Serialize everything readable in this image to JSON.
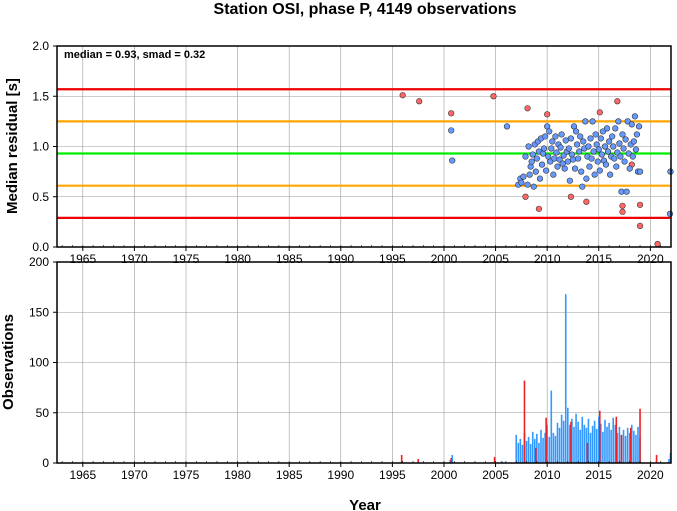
{
  "title": "Station OSI, phase P, 4149 observations",
  "x_axis_label": "Year",
  "chart_data": [
    {
      "type": "scatter",
      "ylabel": "Median residual [s]",
      "annotation": "median = 0.93, smad = 0.32",
      "xlim": [
        1962.5,
        2022
      ],
      "ylim": [
        0,
        2
      ],
      "x_ticks": [
        "1965",
        "1970",
        "1975",
        "1980",
        "1985",
        "1990",
        "1995",
        "2000",
        "2005",
        "2010",
        "2015",
        "2020"
      ],
      "y_ticks": [
        "0.0",
        "0.5",
        "1.0",
        "1.5",
        "2.0"
      ],
      "grid": true,
      "reference_lines": [
        {
          "value": 0.93,
          "color": "#00ee00"
        },
        {
          "value": 1.25,
          "color": "#ffa500"
        },
        {
          "value": 0.61,
          "color": "#ffa500"
        },
        {
          "value": 1.57,
          "color": "#ee0000"
        },
        {
          "value": 0.29,
          "color": "#ee0000"
        }
      ],
      "series": [
        {
          "color": "#ff6666",
          "points": [
            [
              1996,
              1.51
            ],
            [
              1997.6,
              1.45
            ],
            [
              2000.7,
              1.33
            ],
            [
              2004.8,
              1.5
            ],
            [
              2007.9,
              0.5
            ],
            [
              2008.1,
              1.38
            ],
            [
              2009.2,
              0.38
            ],
            [
              2010,
              1.32
            ],
            [
              2012.3,
              0.5
            ],
            [
              2013.8,
              0.45
            ],
            [
              2015.1,
              1.34
            ],
            [
              2016.8,
              1.45
            ],
            [
              2017.3,
              0.41
            ],
            [
              2017.3,
              0.35
            ],
            [
              2018.2,
              0.82
            ],
            [
              2019,
              0.42
            ],
            [
              2019,
              0.21
            ],
            [
              2020.7,
              0.03
            ]
          ]
        },
        {
          "color": "#6699ff",
          "points": [
            [
              2000.7,
              1.16
            ],
            [
              2000.8,
              0.86
            ],
            [
              2006.1,
              1.2
            ],
            [
              2007.2,
              0.62
            ],
            [
              2007.4,
              0.68
            ],
            [
              2007.5,
              0.64
            ],
            [
              2007.7,
              0.7
            ],
            [
              2007.9,
              0.9
            ],
            [
              2008.1,
              0.62
            ],
            [
              2008.2,
              1.0
            ],
            [
              2008.3,
              0.72
            ],
            [
              2008.4,
              0.8
            ],
            [
              2008.5,
              0.85
            ],
            [
              2008.6,
              0.92
            ],
            [
              2008.7,
              0.6
            ],
            [
              2008.8,
              1.02
            ],
            [
              2008.9,
              0.75
            ],
            [
              2009,
              0.88
            ],
            [
              2009.1,
              1.05
            ],
            [
              2009.2,
              0.95
            ],
            [
              2009.3,
              0.68
            ],
            [
              2009.4,
              1.08
            ],
            [
              2009.5,
              0.82
            ],
            [
              2009.6,
              0.93
            ],
            [
              2009.7,
              0.98
            ],
            [
              2009.8,
              1.1
            ],
            [
              2009.9,
              0.76
            ],
            [
              2010,
              1.2
            ],
            [
              2010.1,
              0.9
            ],
            [
              2010.2,
              1.15
            ],
            [
              2010.3,
              0.85
            ],
            [
              2010.4,
              0.98
            ],
            [
              2010.5,
              1.05
            ],
            [
              2010.6,
              0.72
            ],
            [
              2010.7,
              0.88
            ],
            [
              2010.8,
              1.1
            ],
            [
              2010.9,
              0.94
            ],
            [
              2011,
              0.8
            ],
            [
              2011.1,
              1.02
            ],
            [
              2011.2,
              0.87
            ],
            [
              2011.3,
              0.99
            ],
            [
              2011.4,
              1.12
            ],
            [
              2011.5,
              0.83
            ],
            [
              2011.6,
              0.91
            ],
            [
              2011.7,
              0.78
            ],
            [
              2011.8,
              1.06
            ],
            [
              2011.9,
              0.95
            ],
            [
              2012,
              0.85
            ],
            [
              2012.1,
              0.98
            ],
            [
              2012.2,
              0.66
            ],
            [
              2012.3,
              1.08
            ],
            [
              2012.4,
              0.92
            ],
            [
              2012.5,
              0.87
            ],
            [
              2012.6,
              1.2
            ],
            [
              2012.7,
              0.78
            ],
            [
              2012.8,
              1.15
            ],
            [
              2012.9,
              1.02
            ],
            [
              2013,
              0.88
            ],
            [
              2013.1,
              0.95
            ],
            [
              2013.2,
              1.1
            ],
            [
              2013.3,
              0.75
            ],
            [
              2013.4,
              0.6
            ],
            [
              2013.5,
              1.05
            ],
            [
              2013.6,
              0.98
            ],
            [
              2013.7,
              1.25
            ],
            [
              2013.8,
              0.68
            ],
            [
              2013.9,
              0.9
            ],
            [
              2014,
              1.0
            ],
            [
              2014.1,
              0.8
            ],
            [
              2014.2,
              1.08
            ],
            [
              2014.3,
              0.88
            ],
            [
              2014.4,
              1.25
            ],
            [
              2014.5,
              0.95
            ],
            [
              2014.6,
              0.72
            ],
            [
              2014.7,
              1.12
            ],
            [
              2014.8,
              1.02
            ],
            [
              2014.9,
              0.85
            ],
            [
              2015,
              0.97
            ],
            [
              2015.1,
              0.76
            ],
            [
              2015.2,
              1.08
            ],
            [
              2015.3,
              0.92
            ],
            [
              2015.4,
              1.15
            ],
            [
              2015.5,
              0.86
            ],
            [
              2015.6,
              1.0
            ],
            [
              2015.7,
              0.82
            ],
            [
              2015.8,
              1.18
            ],
            [
              2015.9,
              0.95
            ],
            [
              2016,
              1.05
            ],
            [
              2016.1,
              0.72
            ],
            [
              2016.2,
              0.9
            ],
            [
              2016.3,
              1.1
            ],
            [
              2016.4,
              1.0
            ],
            [
              2016.5,
              0.88
            ],
            [
              2016.6,
              1.18
            ],
            [
              2016.7,
              0.8
            ],
            [
              2016.8,
              0.94
            ],
            [
              2016.9,
              1.25
            ],
            [
              2017,
              1.03
            ],
            [
              2017.1,
              0.9
            ],
            [
              2017.2,
              0.55
            ],
            [
              2017.3,
              1.12
            ],
            [
              2017.4,
              0.98
            ],
            [
              2017.5,
              0.85
            ],
            [
              2017.6,
              1.07
            ],
            [
              2017.7,
              0.55
            ],
            [
              2017.8,
              1.25
            ],
            [
              2017.9,
              0.93
            ],
            [
              2018,
              0.78
            ],
            [
              2018.1,
              1.02
            ],
            [
              2018.2,
              1.22
            ],
            [
              2018.3,
              0.9
            ],
            [
              2018.4,
              1.05
            ],
            [
              2018.5,
              1.3
            ],
            [
              2018.6,
              0.97
            ],
            [
              2018.7,
              1.12
            ],
            [
              2018.8,
              0.75
            ],
            [
              2018.9,
              1.2
            ],
            [
              2019,
              0.75
            ],
            [
              2021.9,
              0.33
            ],
            [
              2021.95,
              0.75
            ]
          ]
        }
      ]
    },
    {
      "type": "bar",
      "ylabel": "Observations",
      "xlim": [
        1962.5,
        2022
      ],
      "ylim": [
        0,
        200
      ],
      "x_ticks": [
        "1965",
        "1970",
        "1975",
        "1980",
        "1985",
        "1990",
        "1995",
        "2000",
        "2005",
        "2010",
        "2015",
        "2020"
      ],
      "y_ticks": [
        "0",
        "50",
        "100",
        "150",
        "200"
      ],
      "grid": true,
      "series": [
        {
          "color": "#3399ff",
          "points": [
            [
              2000.6,
              3
            ],
            [
              2000.8,
              8
            ],
            [
              2005.6,
              2
            ],
            [
              2007.0,
              28
            ],
            [
              2007.2,
              20
            ],
            [
              2007.4,
              24
            ],
            [
              2007.6,
              18
            ],
            [
              2007.8,
              30
            ],
            [
              2008.0,
              22
            ],
            [
              2008.2,
              26
            ],
            [
              2008.4,
              19
            ],
            [
              2008.6,
              31
            ],
            [
              2008.8,
              24
            ],
            [
              2009.0,
              29
            ],
            [
              2009.2,
              20
            ],
            [
              2009.4,
              33
            ],
            [
              2009.6,
              25
            ],
            [
              2009.8,
              30
            ],
            [
              2010.0,
              38
            ],
            [
              2010.2,
              26
            ],
            [
              2010.4,
              72
            ],
            [
              2010.6,
              30
            ],
            [
              2010.8,
              27
            ],
            [
              2011.0,
              40
            ],
            [
              2011.2,
              35
            ],
            [
              2011.4,
              48
            ],
            [
              2011.6,
              42
            ],
            [
              2011.8,
              168
            ],
            [
              2012.0,
              55
            ],
            [
              2012.2,
              38
            ],
            [
              2012.4,
              44
            ],
            [
              2012.6,
              36
            ],
            [
              2012.8,
              49
            ],
            [
              2013.0,
              41
            ],
            [
              2013.2,
              33
            ],
            [
              2013.4,
              46
            ],
            [
              2013.6,
              38
            ],
            [
              2013.8,
              35
            ],
            [
              2014.0,
              44
            ],
            [
              2014.2,
              30
            ],
            [
              2014.4,
              37
            ],
            [
              2014.6,
              42
            ],
            [
              2014.8,
              34
            ],
            [
              2015.0,
              46
            ],
            [
              2015.2,
              39
            ],
            [
              2015.4,
              31
            ],
            [
              2015.6,
              43
            ],
            [
              2015.8,
              36
            ],
            [
              2016.0,
              40
            ],
            [
              2016.2,
              33
            ],
            [
              2016.4,
              45
            ],
            [
              2016.6,
              38
            ],
            [
              2016.8,
              30
            ],
            [
              2017.0,
              36
            ],
            [
              2017.2,
              28
            ],
            [
              2017.4,
              33
            ],
            [
              2017.6,
              27
            ],
            [
              2017.8,
              35
            ],
            [
              2018.0,
              30
            ],
            [
              2018.2,
              38
            ],
            [
              2018.4,
              32
            ],
            [
              2018.6,
              28
            ],
            [
              2018.8,
              36
            ],
            [
              2019.0,
              25
            ],
            [
              2021.8,
              4
            ],
            [
              2021.95,
              10
            ]
          ]
        },
        {
          "color": "#ee2222",
          "points": [
            [
              1995.9,
              8
            ],
            [
              1997.5,
              4
            ],
            [
              2000.7,
              5
            ],
            [
              2004.9,
              6
            ],
            [
              2007.8,
              82
            ],
            [
              2008.9,
              15
            ],
            [
              2009.9,
              45
            ],
            [
              2012.3,
              41
            ],
            [
              2013.9,
              20
            ],
            [
              2015.1,
              52
            ],
            [
              2016.7,
              46
            ],
            [
              2017.2,
              28
            ],
            [
              2018.1,
              35
            ],
            [
              2019.0,
              54
            ],
            [
              2020.6,
              8
            ]
          ]
        }
      ]
    }
  ]
}
